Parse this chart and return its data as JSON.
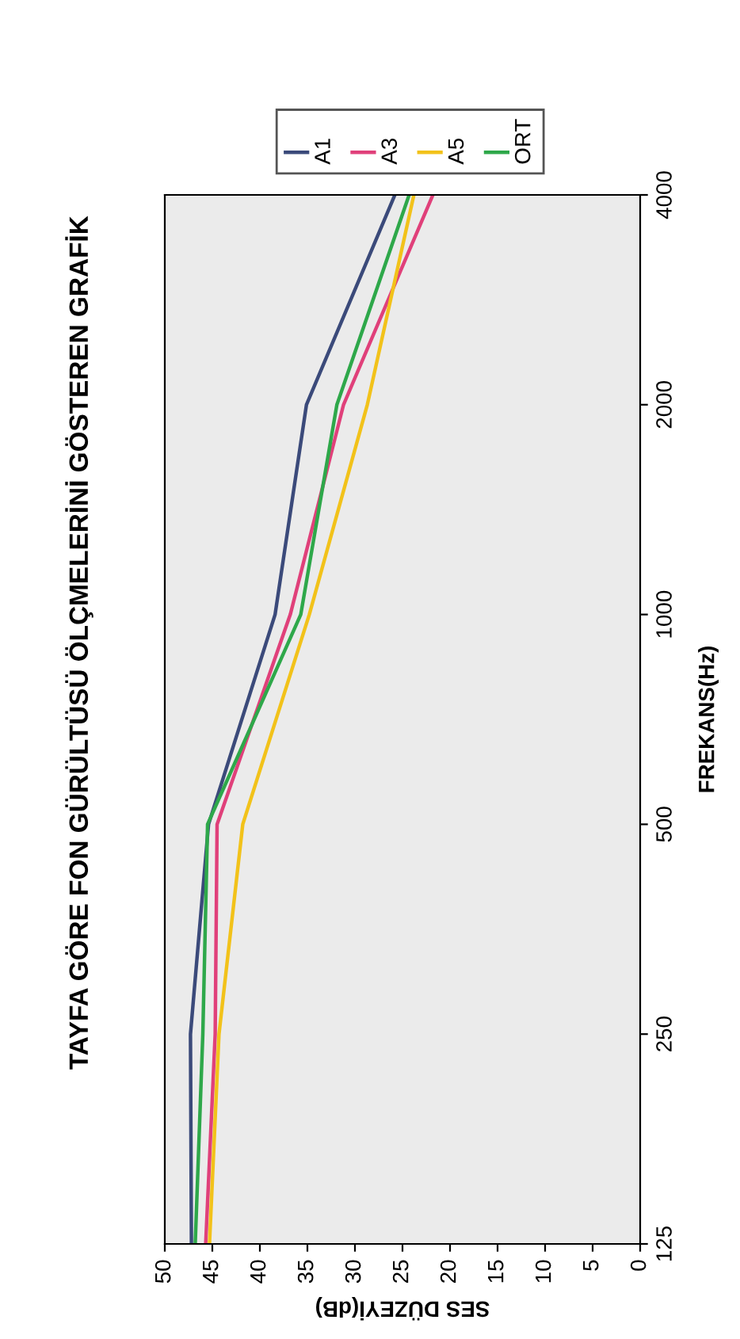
{
  "chart_data": {
    "type": "line",
    "title": "TAYFA GÖRE FON GÜRÜLTÜSÜ ÖLÇMELERİNİ GÖSTEREN GRAFİK",
    "xlabel": "SES DÜZEYİ(dB)",
    "ylabel": "FREKANS(Hz)",
    "series": [
      {
        "name": "A1",
        "color": "#3b4a7a",
        "x": [
          47.2,
          47.3,
          45.4,
          38.4,
          35.1,
          25.8
        ],
        "values": [
          125,
          250,
          500,
          1000,
          2000,
          4000
        ]
      },
      {
        "name": "A3",
        "color": "#e0407a",
        "x": [
          45.7,
          44.7,
          44.5,
          36.8,
          31.2,
          21.8
        ],
        "values": [
          125,
          250,
          500,
          1000,
          2000,
          4000
        ]
      },
      {
        "name": "A5",
        "color": "#f2c21a",
        "x": [
          45.3,
          44.3,
          41.8,
          34.8,
          28.7,
          23.8
        ],
        "values": [
          125,
          250,
          500,
          1000,
          2000,
          4000
        ]
      },
      {
        "name": "ORT",
        "color": "#2ea84a",
        "x": [
          46.8,
          46.0,
          45.5,
          35.7,
          31.9,
          24.3
        ],
        "values": [
          125,
          250,
          500,
          1000,
          2000,
          4000
        ]
      }
    ],
    "xlim": [
      50,
      0
    ],
    "xticks": [
      0,
      5,
      10,
      15,
      20,
      25,
      30,
      35,
      40,
      45,
      50
    ],
    "ylim": [
      125,
      4000
    ],
    "yticks": [
      125,
      250,
      500,
      1000,
      2000,
      4000
    ],
    "log": "y",
    "grid": false,
    "legend": "top right",
    "marker": "none",
    "line_style": "solid"
  }
}
